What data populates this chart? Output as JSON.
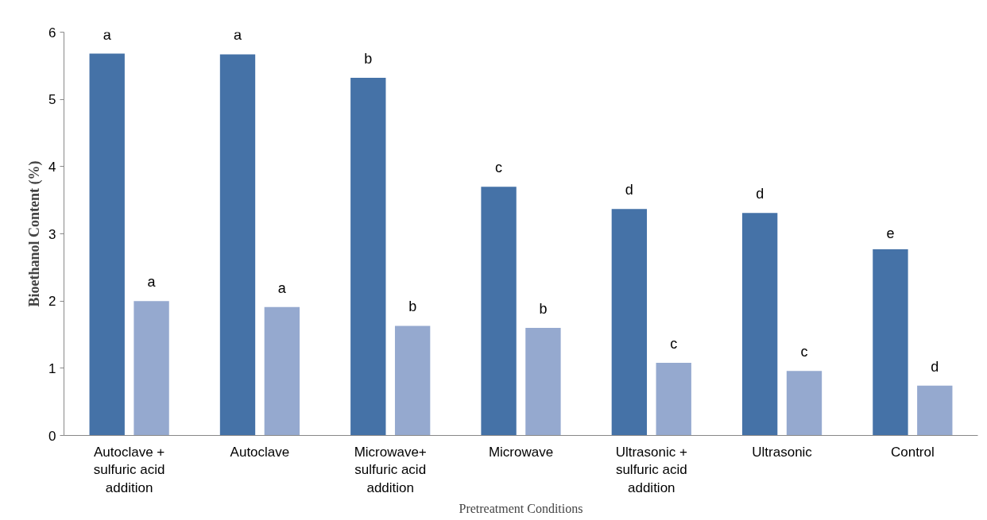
{
  "chart_data": {
    "type": "bar",
    "xlabel": "Pretreatment Conditions",
    "ylabel": "Bioethanol Content (%)",
    "categories": [
      "Autoclave +\nsulfuric acid\naddition",
      "Autoclave",
      "Microwave+\nsulfuric acid\naddition",
      "Microwave",
      "Ultrasonic +\nsulfuric acid\naddition",
      "Ultrasonic",
      "Control"
    ],
    "series": [
      {
        "color": "#4572a7",
        "values": [
          5.68,
          5.67,
          5.32,
          3.7,
          3.37,
          3.31,
          2.77
        ],
        "value_labels": [
          "a",
          "a",
          "b",
          "c",
          "d",
          "d",
          "e"
        ]
      },
      {
        "color": "#95a9cf",
        "values": [
          2.0,
          1.91,
          1.63,
          1.6,
          1.08,
          0.96,
          0.74
        ],
        "value_labels": [
          "a",
          "a",
          "b",
          "b",
          "c",
          "c",
          "d"
        ]
      }
    ],
    "ylim": [
      0,
      6
    ],
    "yticks": [
      0,
      1,
      2,
      3,
      4,
      5,
      6
    ]
  }
}
